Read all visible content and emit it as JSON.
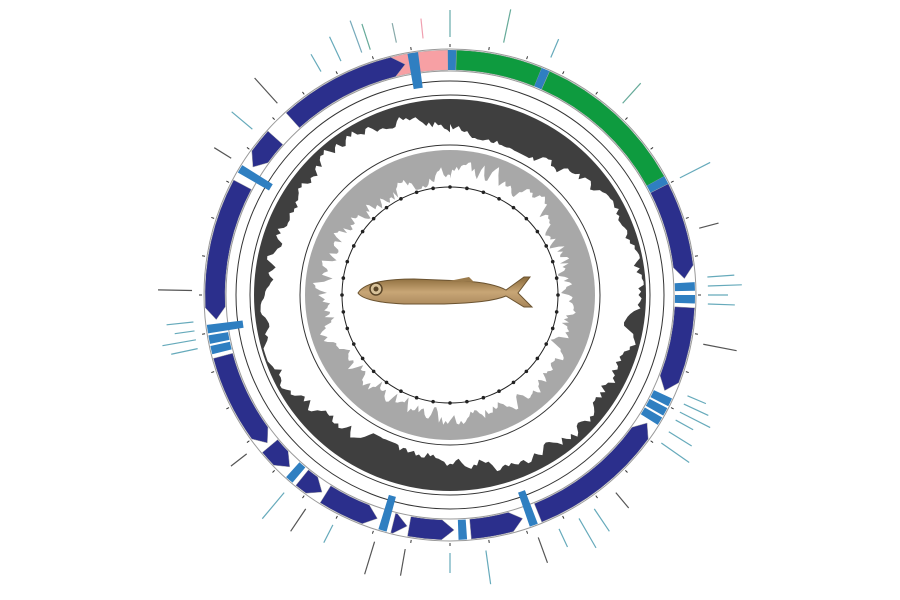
{
  "colors": {
    "protein_coding": "#2b2f8c",
    "trna": "#2f7fc1",
    "rrna": "#0e9b3f",
    "control_region": "#f7a0a4",
    "gc_skew": "#3f3f3f",
    "gc_content": "#a8a8a8",
    "ring_line": "#333333",
    "tick_line": "#5f9ea8"
  },
  "center_image": {
    "icon": "fish-photo"
  }
}
